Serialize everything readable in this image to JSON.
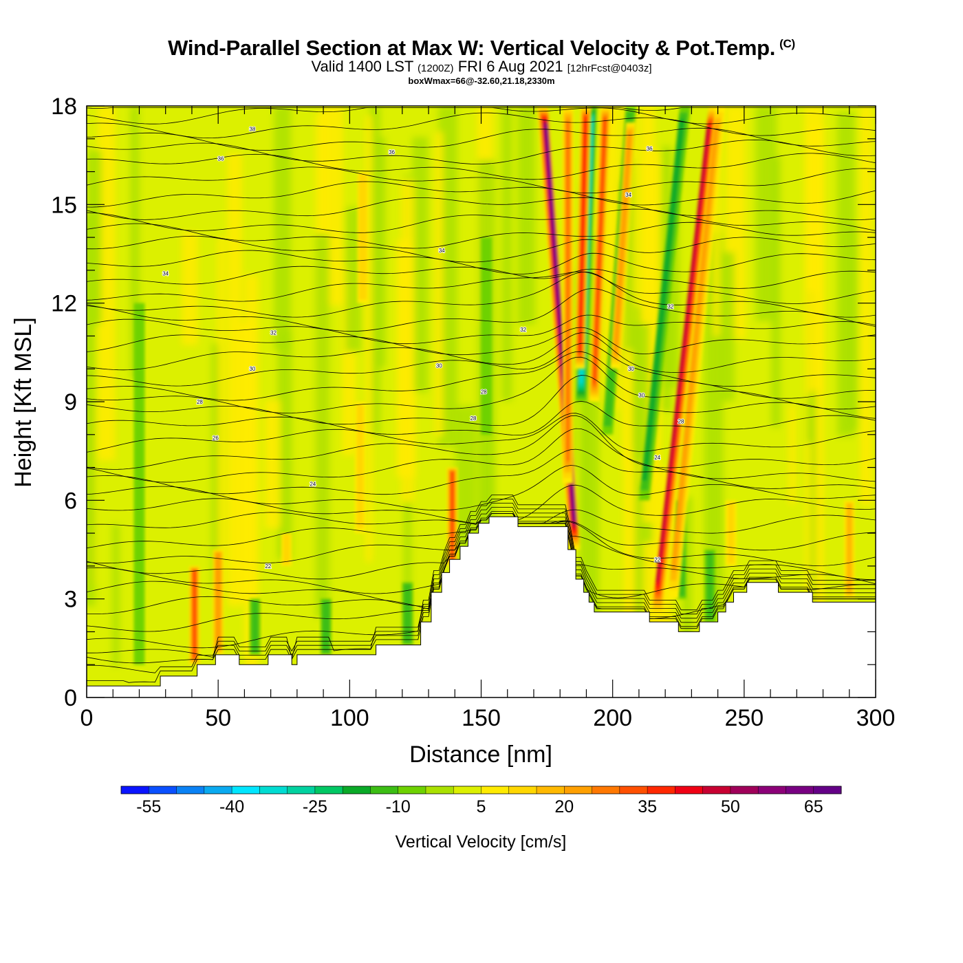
{
  "title": {
    "main": "Wind-Parallel Section at Max W: Vertical Velocity & Pot.Temp.",
    "copyright": "(C)",
    "valid_prefix": "Valid 1400 LST",
    "utc": "(1200Z)",
    "valid_date": "FRI 6 Aug 2021",
    "forecast": "[12hrFcst@0403z]",
    "box": "boxWmax=66@-32.60,21.18,2330m"
  },
  "chart_data": {
    "type": "heatmap",
    "xlabel": "Distance [nm]",
    "ylabel": "Height [Kft MSL]",
    "xlim": [
      0,
      300
    ],
    "ylim": [
      0,
      18
    ],
    "x_ticks": [
      "0",
      "50",
      "100",
      "150",
      "200",
      "250",
      "300"
    ],
    "y_ticks": [
      "0",
      "3",
      "6",
      "9",
      "12",
      "15",
      "18"
    ],
    "colorbar": {
      "label": "Vertical Velocity [cm/s]",
      "tick_labels": [
        "-55",
        "-40",
        "-25",
        "-10",
        "5",
        "20",
        "35",
        "50",
        "65"
      ],
      "min": -60,
      "max": 70,
      "step": 5,
      "colors": [
        "#0a14ff",
        "#0a50ff",
        "#0a82f5",
        "#0aaaf0",
        "#00e6ff",
        "#00dcd2",
        "#00d2a0",
        "#00c864",
        "#0aaa28",
        "#3cbe14",
        "#6ed200",
        "#aae100",
        "#dcf000",
        "#ffeb00",
        "#ffd700",
        "#ffb900",
        "#ffa000",
        "#ff7800",
        "#ff5000",
        "#ff2800",
        "#f00014",
        "#c80032",
        "#a0005a",
        "#8c0078",
        "#780082",
        "#640087"
      ]
    },
    "terrain": [
      [
        0,
        0.35
      ],
      [
        28,
        0.35
      ],
      [
        28,
        0.65
      ],
      [
        42,
        0.65
      ],
      [
        42,
        1.0
      ],
      [
        49,
        1.0
      ],
      [
        49,
        1.3
      ],
      [
        58,
        1.3
      ],
      [
        58,
        1.0
      ],
      [
        69,
        1.0
      ],
      [
        69,
        1.3
      ],
      [
        78,
        1.3
      ],
      [
        78,
        1.0
      ],
      [
        80,
        1.0
      ],
      [
        80,
        1.3
      ],
      [
        110,
        1.3
      ],
      [
        110,
        1.6
      ],
      [
        127,
        1.6
      ],
      [
        127,
        2.3
      ],
      [
        131,
        2.3
      ],
      [
        131,
        3.2
      ],
      [
        135,
        3.2
      ],
      [
        135,
        3.8
      ],
      [
        138,
        3.8
      ],
      [
        138,
        4.2
      ],
      [
        142,
        4.2
      ],
      [
        142,
        4.6
      ],
      [
        145,
        4.6
      ],
      [
        145,
        5.0
      ],
      [
        149,
        5.0
      ],
      [
        149,
        5.3
      ],
      [
        153,
        5.3
      ],
      [
        153,
        5.5
      ],
      [
        164,
        5.5
      ],
      [
        164,
        5.2
      ],
      [
        183,
        5.2
      ],
      [
        183,
        4.5
      ],
      [
        186,
        4.5
      ],
      [
        186,
        3.6
      ],
      [
        189,
        3.6
      ],
      [
        189,
        3.2
      ],
      [
        191,
        3.2
      ],
      [
        191,
        2.9
      ],
      [
        193,
        2.9
      ],
      [
        193,
        2.6
      ],
      [
        214,
        2.6
      ],
      [
        214,
        2.3
      ],
      [
        225,
        2.3
      ],
      [
        225,
        2.0
      ],
      [
        233,
        2.0
      ],
      [
        233,
        2.3
      ],
      [
        240,
        2.3
      ],
      [
        240,
        2.6
      ],
      [
        243,
        2.6
      ],
      [
        243,
        2.9
      ],
      [
        246,
        2.9
      ],
      [
        246,
        3.2
      ],
      [
        251,
        3.2
      ],
      [
        251,
        3.5
      ],
      [
        263,
        3.5
      ],
      [
        263,
        3.2
      ],
      [
        276,
        3.2
      ],
      [
        276,
        2.9
      ],
      [
        300,
        2.9
      ]
    ],
    "plumes": [
      {
        "x": 185.5,
        "y_low": 4.5,
        "y_high": 18,
        "value": 60,
        "tilt": -0.9
      },
      {
        "x": 183,
        "y_low": 6.5,
        "y_high": 18,
        "value": 25,
        "tilt": 0
      },
      {
        "x": 187.5,
        "y_low": 10,
        "y_high": 18,
        "value": 35,
        "tilt": 0.3
      },
      {
        "x": 193,
        "y_low": 9,
        "y_high": 18,
        "value": 30,
        "tilt": 0.5
      },
      {
        "x": 201,
        "y_low": 10,
        "y_high": 17.5,
        "value": 18,
        "tilt": 0.8
      },
      {
        "x": 217,
        "y_low": 2.5,
        "y_high": 18,
        "value": 45,
        "tilt": 1.4
      },
      {
        "x": 223,
        "y_low": 3,
        "y_high": 18,
        "value": 20,
        "tilt": 1.2
      },
      {
        "x": 139,
        "y_low": 4,
        "y_high": 7,
        "value": 30,
        "tilt": 0
      },
      {
        "x": 41,
        "y_low": 1,
        "y_high": 4,
        "value": 28,
        "tilt": 0
      },
      {
        "x": 50,
        "y_low": 1.3,
        "y_high": 4.5,
        "value": 22,
        "tilt": 0
      },
      {
        "x": 105,
        "y_low": 12,
        "y_high": 16,
        "value": 12,
        "tilt": 0
      },
      {
        "x": 104,
        "y_low": 5,
        "y_high": 9,
        "value": 10,
        "tilt": 0
      },
      {
        "x": 245,
        "y_low": 4,
        "y_high": 6,
        "value": 10,
        "tilt": 0
      },
      {
        "x": 290,
        "y_low": 3,
        "y_high": 6,
        "value": 14,
        "tilt": 0
      },
      {
        "x": 76,
        "y_low": 4,
        "y_high": 5,
        "value": 10,
        "tilt": 0
      }
    ],
    "downdrafts": [
      {
        "x": 188,
        "y_low": 9,
        "y_high": 18,
        "value": -30,
        "tilt": 0.45
      },
      {
        "x": 198,
        "y_low": 8,
        "y_high": 18,
        "value": -12,
        "tilt": 0.9
      },
      {
        "x": 212,
        "y_low": 6,
        "y_high": 18,
        "value": -15,
        "tilt": 1.3
      },
      {
        "x": 226,
        "y_low": 3,
        "y_high": 6,
        "value": -12,
        "tilt": 0
      },
      {
        "x": 64,
        "y_low": 1.3,
        "y_high": 3,
        "value": -10,
        "tilt": 0
      },
      {
        "x": 91,
        "y_low": 1.3,
        "y_high": 3,
        "value": -12,
        "tilt": 0
      },
      {
        "x": 122,
        "y_low": 1.6,
        "y_high": 3.5,
        "value": -12,
        "tilt": 0
      },
      {
        "x": 237,
        "y_low": 2.3,
        "y_high": 4.5,
        "value": -10,
        "tilt": 0
      },
      {
        "x": 20,
        "y_low": 1,
        "y_high": 12,
        "value": -8,
        "tilt": 0
      },
      {
        "x": 152,
        "y_low": 8,
        "y_high": 14,
        "value": -8,
        "tilt": 0
      }
    ],
    "contour_labels": [
      {
        "x": 63,
        "y": 17.3,
        "text": "38"
      },
      {
        "x": 51,
        "y": 16.4,
        "text": "36"
      },
      {
        "x": 116,
        "y": 16.6,
        "text": "36"
      },
      {
        "x": 214,
        "y": 16.7,
        "text": "36"
      },
      {
        "x": 206,
        "y": 15.3,
        "text": "34"
      },
      {
        "x": 30,
        "y": 12.9,
        "text": "34"
      },
      {
        "x": 135,
        "y": 13.6,
        "text": "34"
      },
      {
        "x": 222,
        "y": 11.9,
        "text": "32"
      },
      {
        "x": 71,
        "y": 11.1,
        "text": "32"
      },
      {
        "x": 166,
        "y": 11.2,
        "text": "32"
      },
      {
        "x": 63,
        "y": 10.0,
        "text": "30"
      },
      {
        "x": 134,
        "y": 10.1,
        "text": "30"
      },
      {
        "x": 207,
        "y": 10.0,
        "text": "30"
      },
      {
        "x": 43,
        "y": 9.0,
        "text": "28"
      },
      {
        "x": 151,
        "y": 9.3,
        "text": "28"
      },
      {
        "x": 211,
        "y": 9.2,
        "text": "30"
      },
      {
        "x": 147,
        "y": 8.5,
        "text": "28"
      },
      {
        "x": 226,
        "y": 8.4,
        "text": "28"
      },
      {
        "x": 49,
        "y": 7.9,
        "text": "26"
      },
      {
        "x": 217,
        "y": 7.3,
        "text": "24"
      },
      {
        "x": 86,
        "y": 6.5,
        "text": "24"
      },
      {
        "x": 69,
        "y": 4.0,
        "text": "22"
      },
      {
        "x": 217,
        "y": 4.2,
        "text": "22"
      }
    ]
  }
}
